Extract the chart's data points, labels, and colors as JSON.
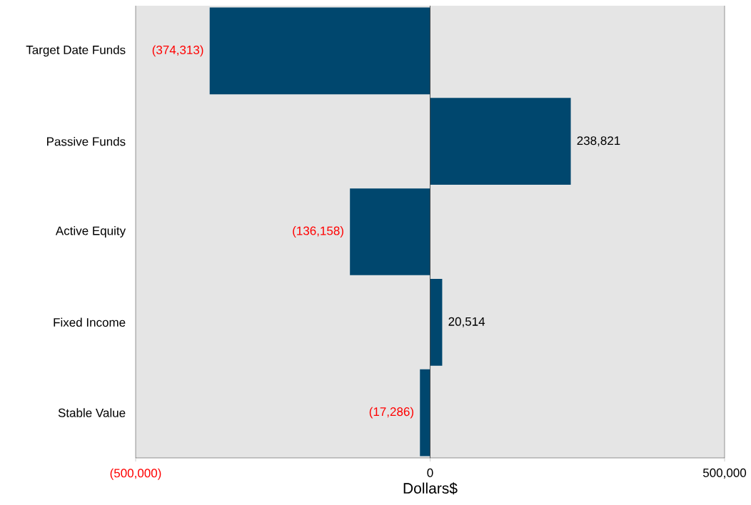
{
  "chart_data": {
    "type": "bar",
    "orientation": "horizontal",
    "xlabel": "Dollars$",
    "categories": [
      "Target Date Funds",
      "Passive Funds",
      "Active Equity",
      "Fixed Income",
      "Stable Value"
    ],
    "values": [
      -374313,
      238821,
      -136158,
      20514,
      -17286
    ],
    "value_labels": [
      "(374,313)",
      "238,821",
      "(136,158)",
      "20,514",
      "(17,286)"
    ],
    "color": "#00476e",
    "xlim": [
      -500000,
      500000
    ],
    "xticks": [
      {
        "value": -500000,
        "label": "(500,000)"
      },
      0,
      {
        "value": 500000,
        "label": "500,000"
      }
    ],
    "ref_lines": [
      {
        "axis": "x",
        "value": 0,
        "color": "#333333"
      }
    ],
    "grid": false
  }
}
